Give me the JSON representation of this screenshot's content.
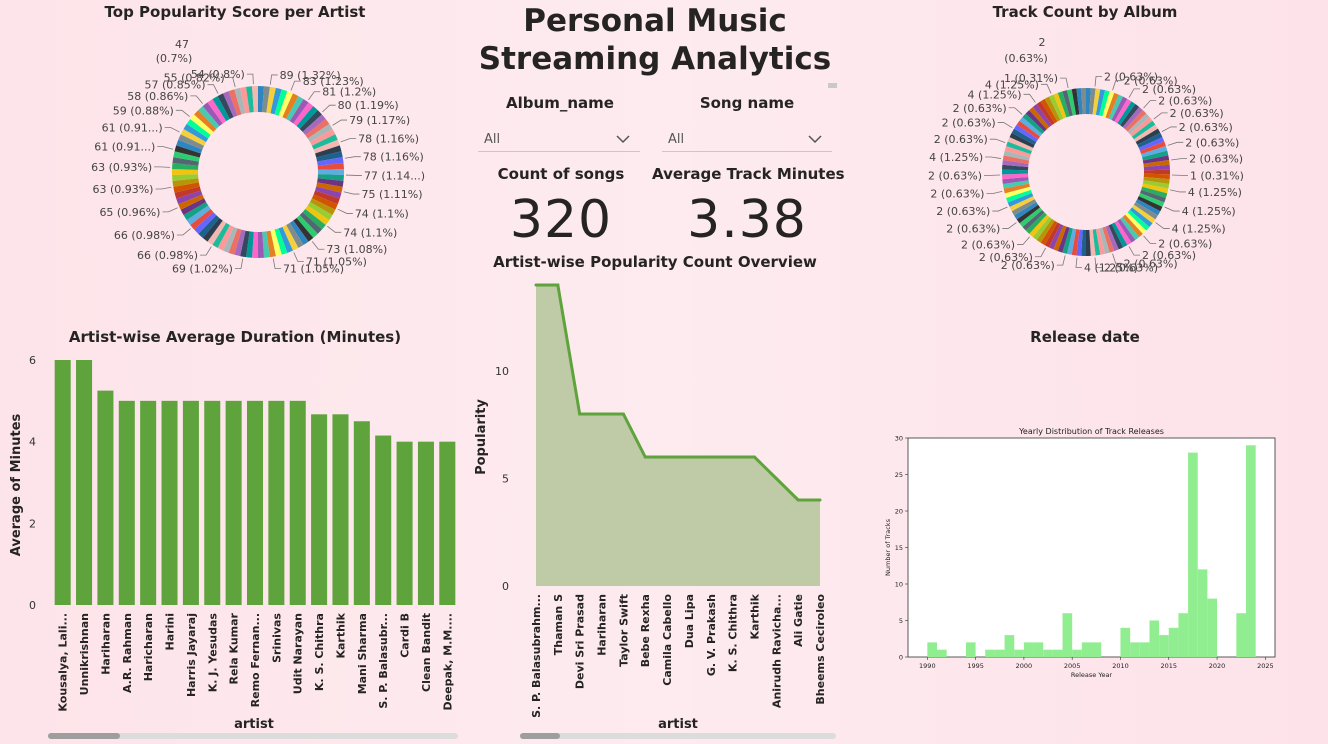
{
  "dashboard": {
    "title_line1": "Personal Music",
    "title_line2": "Streaming Analytics"
  },
  "slicers": {
    "album": {
      "label": "Album_name",
      "value": "All"
    },
    "song": {
      "label": "Song name",
      "value": "All"
    }
  },
  "cards": {
    "count_songs": {
      "label": "Count of songs",
      "value": "320"
    },
    "avg_minutes": {
      "label": "Average Track Minutes",
      "value": "3.38"
    }
  },
  "donut_popularity": {
    "title": "Top Popularity Score per Artist",
    "labels": [
      "89 (1.32%)",
      "83 (1.23%)",
      "81 (1.2%)",
      "80 (1.19%)",
      "79 (1.17%)",
      "78 (1.16%)",
      "78 (1.16%)",
      "77 (1.14...)",
      "75 (1.11%)",
      "74 (1.1%)",
      "74 (1.1%)",
      "73 (1.08%)",
      "71 (1.05%)",
      "71 (1.05%)",
      "69 (1.02%)",
      "66 (0.98%)",
      "66 (0.98%)",
      "65 (0.96%)",
      "63 (0.93%)",
      "63 (0.93%)",
      "61 (0.91...)",
      "61 (0.91...)",
      "59 (0.88%)",
      "58 (0.86%)",
      "57 (0.85%)",
      "55 (0.82%)",
      "54 (0.8%)",
      "47",
      "(0.7%)"
    ]
  },
  "donut_album": {
    "title": "Track Count by Album",
    "labels": [
      "2",
      "(0.63%)",
      "2 (0.63%)",
      "2 (0.63%)",
      "2 (0.63%)",
      "2 (0.63%)",
      "2 (0.63%)",
      "2 (0.63%)",
      "2 (0.63%)",
      "2 (0.63%)",
      "1 (0.31%)",
      "4 (1.25%)",
      "4 (1.25%)",
      "4 (1.25%)",
      "2 (0.63%)",
      "2 (0.63%)",
      "2 (0.63%)",
      "2 (0.63%)",
      "4 (1.25%)",
      "2 (0.63%)",
      "2 (0.63%)",
      "2 (0.63%)",
      "2 (0.63%)",
      "2 (0.63%)",
      "2 (0.63%)",
      "2 (0.63%)",
      "4 (1.25%)",
      "2 (0.63%)",
      "2 (0.63%)",
      "2 (0.63%)",
      "4 (1.25%)",
      "4 (1.25%)",
      "1 (0.31%)",
      "1 (0.31%)"
    ]
  },
  "chart_data": [
    {
      "type": "bar",
      "title": "Artist-wise Average Duration (Minutes)",
      "xlabel": "artist",
      "ylabel": "Average of Minutes",
      "ylim": [
        0,
        6
      ],
      "yticks": [
        "0",
        "2",
        "4",
        "6"
      ],
      "color": "#5ea33b",
      "categories": [
        "Kousalya, Lali...",
        "Unnikrishnan",
        "Hariharan",
        "A.R. Rahman",
        "Haricharan",
        "Harini",
        "Harris Jayaraj",
        "K. J. Yesudas",
        "Rela Kumar",
        "Remo Fernan...",
        "Srinivas",
        "Udit Narayan",
        "K. S. Chithra",
        "Karthik",
        "Mani Sharma",
        "S. P. Balasubr...",
        "Cardi B",
        "Clean Bandit",
        "Deepak, M.M...."
      ],
      "values": [
        6,
        6,
        5.25,
        5,
        5,
        5,
        5,
        5,
        5,
        5,
        5,
        5,
        4.67,
        4.67,
        4.5,
        4.15,
        4,
        4,
        4
      ]
    },
    {
      "type": "area",
      "title": "Artist-wise Popularity Count Overview",
      "xlabel": "artist",
      "ylabel": "Popularity",
      "ylim": [
        0,
        14
      ],
      "yticks": [
        "0",
        "5",
        "10"
      ],
      "line_color": "#5ea33b",
      "fill_color": "#bfcaa6",
      "categories": [
        "S. P. Balasubrahm...",
        "Thaman S",
        "Devi Sri Prasad",
        "Hariharan",
        "Taylor Swift",
        "Bebe Rexha",
        "Camila Cabello",
        "Dua Lipa",
        "G. V. Prakash",
        "K. S. Chithra",
        "Karthik",
        "Anirudh Ravicha...",
        "Ali Gatie",
        "Bheems Ceciroleo"
      ],
      "values": [
        14,
        14,
        8,
        8,
        8,
        6,
        6,
        6,
        6,
        6,
        6,
        5,
        4,
        4
      ]
    },
    {
      "type": "bar",
      "section_title": "Release date",
      "title": "Yearly Distribution of Track Releases",
      "xlabel": "Release Year",
      "ylabel": "Number of Tracks",
      "color": "#90ee90",
      "xlim": [
        1988,
        2026
      ],
      "ylim": [
        0,
        30
      ],
      "xticks": [
        "1990",
        "1995",
        "2000",
        "2005",
        "2010",
        "2015",
        "2020",
        "2025"
      ],
      "yticks": [
        "0",
        "5",
        "10",
        "15",
        "20",
        "25",
        "30"
      ],
      "bins": [
        {
          "x": 1990,
          "y": 2
        },
        {
          "x": 1991,
          "y": 1
        },
        {
          "x": 1994,
          "y": 2
        },
        {
          "x": 1996,
          "y": 1
        },
        {
          "x": 1997,
          "y": 1
        },
        {
          "x": 1998,
          "y": 3
        },
        {
          "x": 1999,
          "y": 1
        },
        {
          "x": 2000,
          "y": 2
        },
        {
          "x": 2001,
          "y": 2
        },
        {
          "x": 2002,
          "y": 1
        },
        {
          "x": 2003,
          "y": 1
        },
        {
          "x": 2004,
          "y": 6
        },
        {
          "x": 2005,
          "y": 1
        },
        {
          "x": 2006,
          "y": 2
        },
        {
          "x": 2007,
          "y": 2
        },
        {
          "x": 2010,
          "y": 4
        },
        {
          "x": 2011,
          "y": 2
        },
        {
          "x": 2012,
          "y": 2
        },
        {
          "x": 2013,
          "y": 5
        },
        {
          "x": 2014,
          "y": 3
        },
        {
          "x": 2015,
          "y": 4
        },
        {
          "x": 2016,
          "y": 6
        },
        {
          "x": 2017,
          "y": 28
        },
        {
          "x": 2018,
          "y": 12
        },
        {
          "x": 2019,
          "y": 8
        },
        {
          "x": 2022,
          "y": 6
        },
        {
          "x": 2023,
          "y": 29
        }
      ]
    }
  ]
}
